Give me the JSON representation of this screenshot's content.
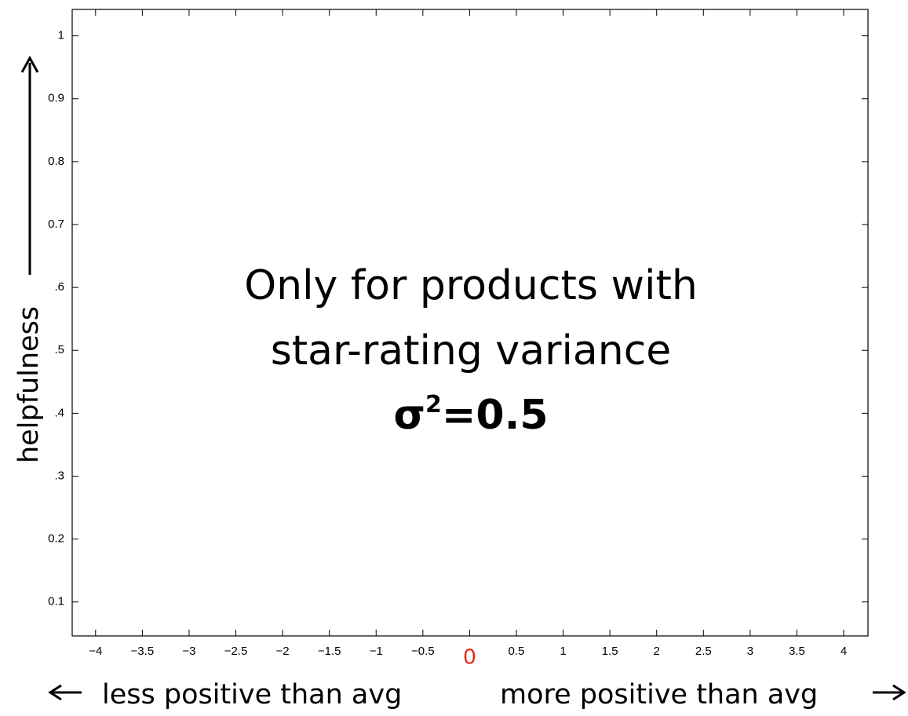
{
  "chart_data": {
    "type": "empty",
    "xlim": [
      -4.25,
      4.26
    ],
    "ylim": [
      0.046,
      1.042
    ],
    "xticks": [
      {
        "value": -4,
        "label": "−4"
      },
      {
        "value": -3.5,
        "label": "−3.5"
      },
      {
        "value": -3,
        "label": "−3"
      },
      {
        "value": -2.5,
        "label": "−2.5"
      },
      {
        "value": -2,
        "label": "−2"
      },
      {
        "value": -1.5,
        "label": "−1.5"
      },
      {
        "value": -1,
        "label": "−1"
      },
      {
        "value": -0.5,
        "label": "−0.5"
      },
      0,
      0.5,
      1,
      1.5,
      2,
      2.5,
      3,
      3.5,
      4
    ],
    "yticks": [
      0.1,
      0.2,
      {
        "value": 0.3,
        "label": ".3"
      },
      {
        "value": 0.4,
        "label": ".4"
      },
      {
        "value": 0.5,
        "label": ".5"
      },
      {
        "value": 0.6,
        "label": ".6"
      },
      0.7,
      0.8,
      0.9,
      1
    ],
    "highlight_tick_color": "#e8211b",
    "ylabel": "helpfulness",
    "xlabel_left": "less positive than avg",
    "xlabel_right": "more positive than avg",
    "annotation": {
      "lines": [
        "Only for products with",
        "star-rating variance"
      ],
      "formula": {
        "base": "σ",
        "sup": "2",
        "rest": "=0.5"
      }
    }
  }
}
